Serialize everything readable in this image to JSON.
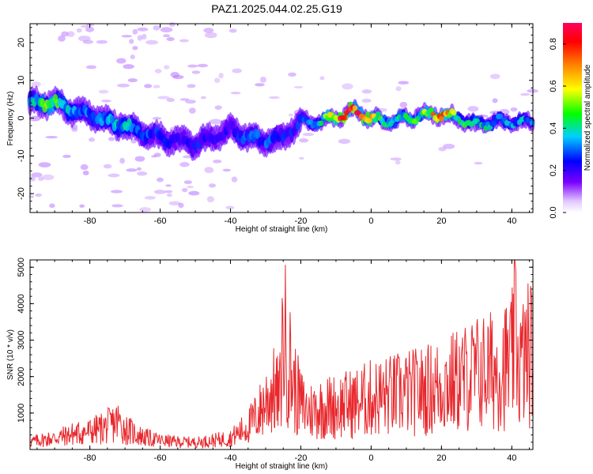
{
  "title": "PAZ1.2025.044.02.25.G19",
  "chart_data": [
    {
      "type": "heatmap",
      "title": "PAZ1.2025.044.02.25.G19",
      "xlabel": "Height of straight line (km)",
      "ylabel": "Frequency (Hz)",
      "xlim": [
        -97,
        46
      ],
      "ylim": [
        -25,
        25
      ],
      "xticks": [
        "-80",
        "-60",
        "-40",
        "-20",
        "0",
        "20",
        "40"
      ],
      "yticks": [
        "-20",
        "-10",
        "0",
        "10",
        "20"
      ],
      "colorbar": {
        "label": "Normalized spectral amplitude",
        "range": [
          0,
          0.9
        ],
        "ticks": [
          "0.0",
          "0.2",
          "0.4",
          "0.6",
          "0.8"
        ],
        "colormap": [
          "#e2c6ff",
          "#7a00ff",
          "#0000ff",
          "#00cfff",
          "#00ff00",
          "#ffff00",
          "#ff8000",
          "#ff0000",
          "#ff0060"
        ]
      },
      "ridge": {
        "x": [
          -95,
          -90,
          -85,
          -80,
          -75,
          -70,
          -65,
          -60,
          -55,
          -50,
          -45,
          -40,
          -35,
          -30,
          -25,
          -20,
          -15,
          -10,
          -5,
          0,
          5,
          10,
          15,
          20,
          25,
          30,
          35,
          40,
          45
        ],
        "freq": [
          4,
          4,
          2,
          1,
          -1,
          -2,
          -4,
          -5,
          -6,
          -7,
          -5,
          -3,
          -5,
          -6,
          -5,
          -1,
          -1,
          0,
          2,
          0,
          -1,
          0,
          1,
          1,
          0,
          -2,
          -1,
          -1,
          -1
        ],
        "peak_amplitude": [
          0.45,
          0.55,
          0.35,
          0.3,
          0.35,
          0.4,
          0.3,
          0.25,
          0.2,
          0.25,
          0.2,
          0.2,
          0.3,
          0.3,
          0.25,
          0.25,
          0.35,
          0.85,
          0.9,
          0.7,
          0.5,
          0.5,
          0.55,
          0.8,
          0.45,
          0.45,
          0.4,
          0.4,
          0.35
        ]
      }
    },
    {
      "type": "line",
      "xlabel": "Height of straight line (km)",
      "ylabel": "SNR (10 * v/v)",
      "xlim": [
        -97,
        46
      ],
      "ylim": [
        0,
        5200
      ],
      "xticks": [
        "-80",
        "-60",
        "-40",
        "-20",
        "0",
        "20",
        "40"
      ],
      "yticks": [
        "1000",
        "2000",
        "3000",
        "4000",
        "5000"
      ],
      "color": "#e8282d",
      "series": [
        {
          "x": [
            -97,
            -90,
            -85,
            -80,
            -75,
            -72,
            -70,
            -65,
            -60,
            -55,
            -50,
            -45,
            -40,
            -35,
            -32,
            -30,
            -28,
            -26,
            -25,
            -22,
            -20,
            -18,
            -15,
            -10,
            -5,
            0,
            5,
            10,
            15,
            20,
            25,
            30,
            35,
            40,
            41,
            42,
            45
          ],
          "values": [
            300,
            450,
            600,
            700,
            900,
            1100,
            800,
            500,
            350,
            300,
            280,
            350,
            450,
            900,
            1400,
            1900,
            2300,
            2000,
            4600,
            2500,
            1800,
            1500,
            1600,
            1700,
            1800,
            2000,
            2100,
            2200,
            2300,
            2500,
            2700,
            3000,
            3100,
            3400,
            5200,
            3200,
            3800
          ]
        }
      ]
    }
  ]
}
